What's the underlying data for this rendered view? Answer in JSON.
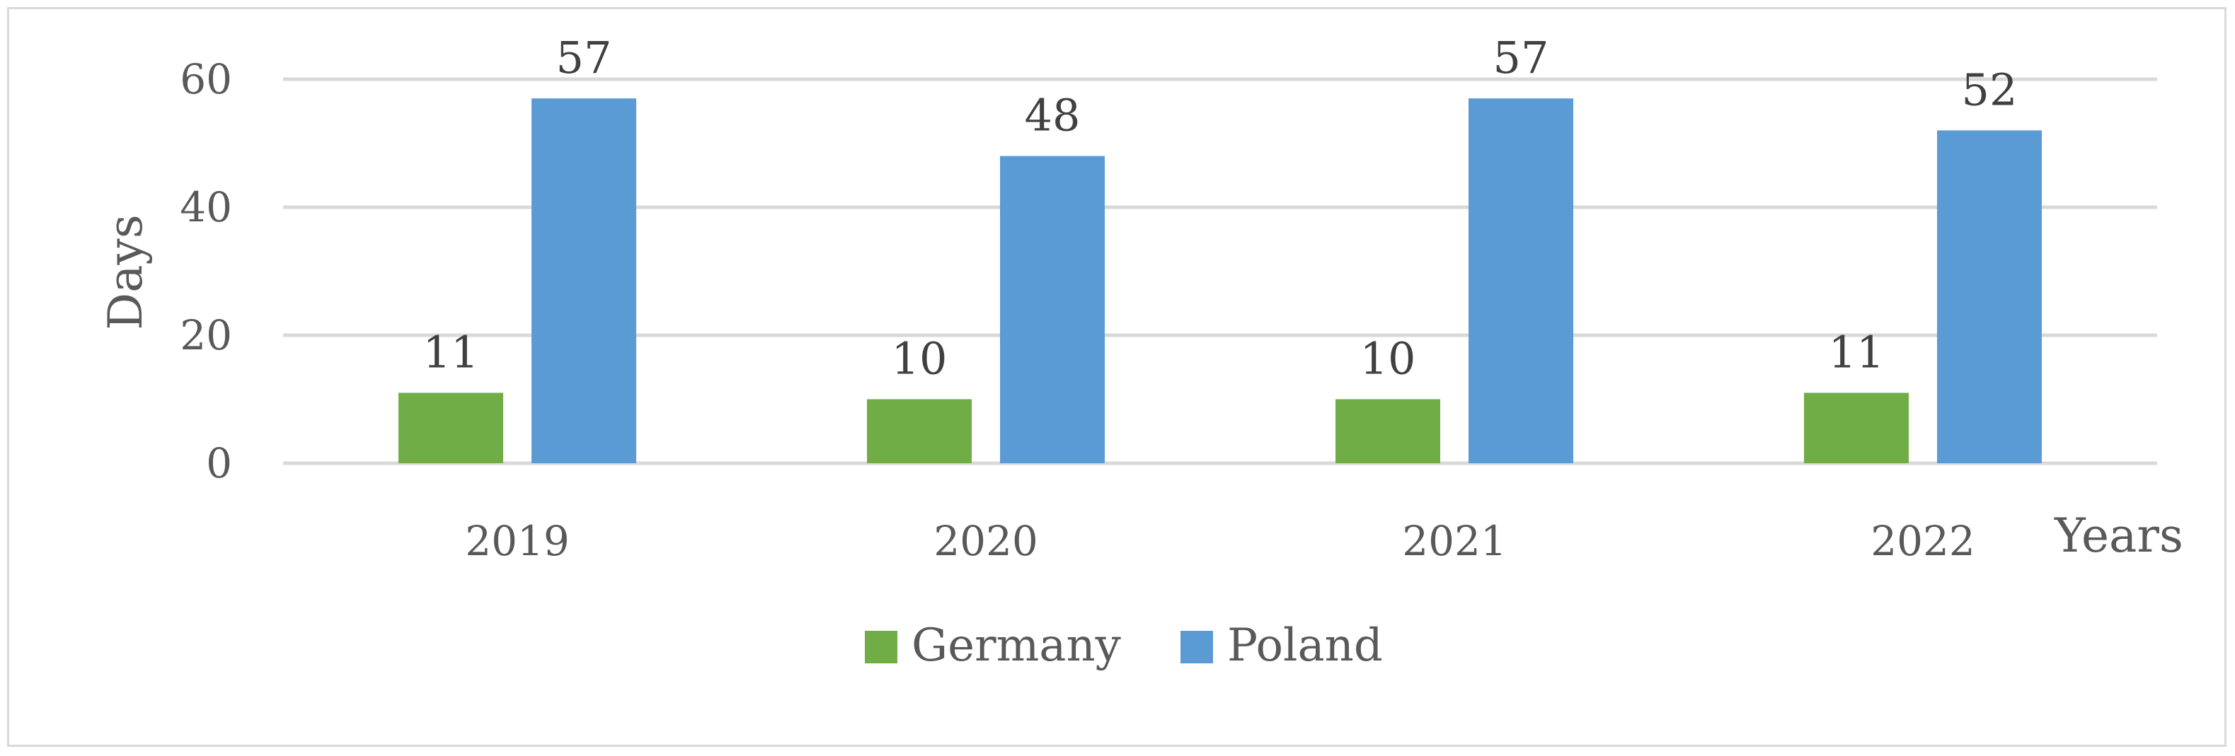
{
  "chart_data": {
    "type": "bar",
    "title": "",
    "xlabel": "Years",
    "ylabel": "Days",
    "categories": [
      "2019",
      "2020",
      "2021",
      "2022"
    ],
    "series": [
      {
        "name": "Germany",
        "values": [
          11,
          10,
          10,
          11
        ],
        "color": "#70ad47"
      },
      {
        "name": "Poland",
        "values": [
          57,
          48,
          57,
          52
        ],
        "color": "#5b9bd5"
      }
    ],
    "ylim": [
      0,
      60
    ],
    "yticks": [
      0,
      20,
      40,
      60
    ],
    "grid": true,
    "legend_position": "bottom",
    "data_labels": true
  }
}
